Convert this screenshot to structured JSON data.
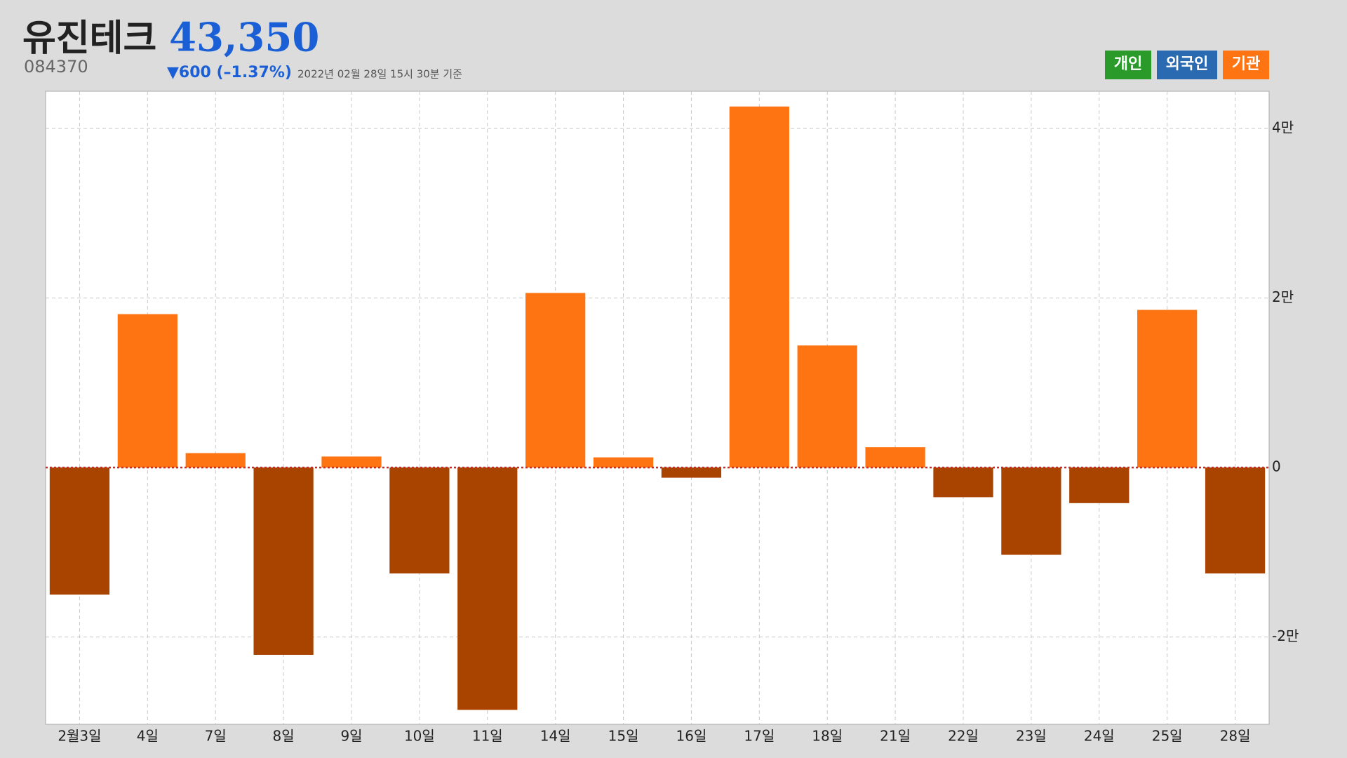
{
  "header": {
    "title": "유진테크",
    "price": "43,350",
    "code": "084370",
    "change": "▼600 (–1.37%)",
    "timestamp": "2022년 02월 28일 15시 30분 기준"
  },
  "chart_data": {
    "type": "bar",
    "categories": [
      "2월3일",
      "4일",
      "7일",
      "8일",
      "9일",
      "10일",
      "11일",
      "14일",
      "15일",
      "16일",
      "17일",
      "18일",
      "21일",
      "22일",
      "23일",
      "24일",
      "25일",
      "28일"
    ],
    "series": [
      {
        "name": "기관",
        "color": "#ff7412",
        "negative_color": "#a84300",
        "values": [
          -15000,
          18100,
          1700,
          -22100,
          1300,
          -12500,
          -28600,
          20600,
          1200,
          -1200,
          42600,
          14400,
          2400,
          -3500,
          -10300,
          -4200,
          18600,
          -12500
        ]
      }
    ],
    "other_legend": [
      {
        "name": "개인",
        "color": "#2a9a2a"
      },
      {
        "name": "외국인",
        "color": "#2a6ab0"
      }
    ],
    "ylim": [
      -30300,
      44400
    ],
    "yticks": [
      {
        "value": -20000,
        "label": "-2만"
      },
      0,
      {
        "value": 20000,
        "label": "2만"
      },
      {
        "value": 40000,
        "label": "4만"
      }
    ],
    "zero_line_color": "#e02020",
    "grid": true
  }
}
